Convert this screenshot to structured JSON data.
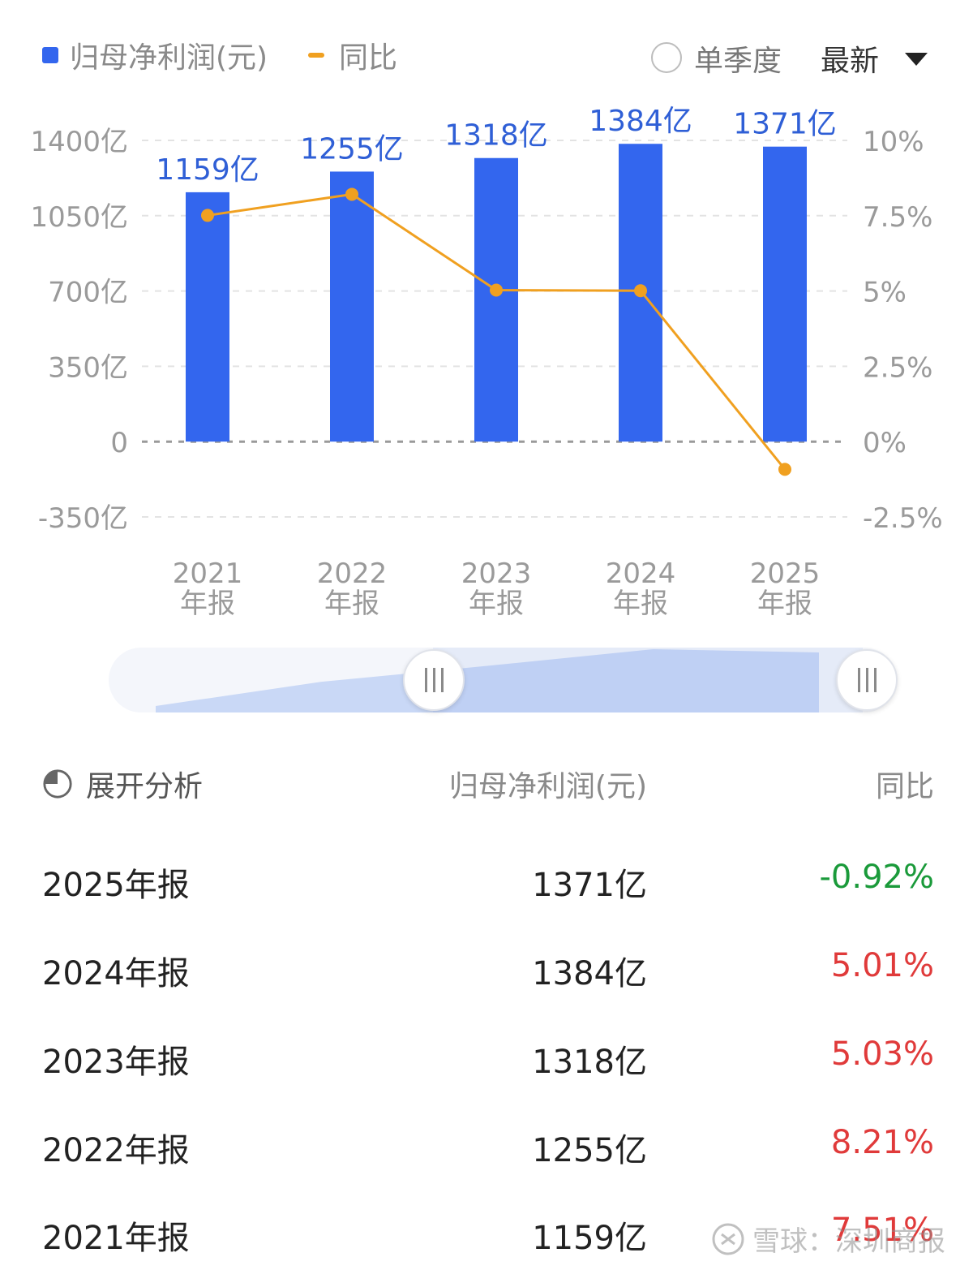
{
  "legend": {
    "bar_label": "归母净利润(元)",
    "line_label": "同比",
    "bar_color": "#3366ee",
    "line_color": "#f0a020"
  },
  "controls": {
    "quarterly_label": "单季度",
    "quarterly_checked": false,
    "period_select": "最新"
  },
  "chart_data": {
    "type": "bar",
    "categories": [
      "2021\n年报",
      "2022\n年报",
      "2023\n年报",
      "2024\n年报",
      "2025\n年报"
    ],
    "series": [
      {
        "name": "归母净利润(元)",
        "type": "bar",
        "values": [
          1159,
          1255,
          1318,
          1384,
          1371
        ],
        "labels": [
          "1159亿",
          "1255亿",
          "1318亿",
          "1384亿",
          "1371亿"
        ],
        "color": "#3366ee"
      },
      {
        "name": "同比",
        "type": "line",
        "values": [
          7.51,
          8.21,
          5.03,
          5.01,
          -0.92
        ],
        "color": "#f0a020"
      }
    ],
    "left_axis": {
      "ticks": [
        "1400亿",
        "1050亿",
        "700亿",
        "350亿",
        "0",
        "-350亿"
      ],
      "tick_values": [
        1400,
        1050,
        700,
        350,
        0,
        -350
      ],
      "ylim": [
        -350,
        1400
      ]
    },
    "right_axis": {
      "ticks": [
        "10%",
        "7.5%",
        "5%",
        "2.5%",
        "0%",
        "-2.5%"
      ],
      "tick_values": [
        10,
        7.5,
        5,
        2.5,
        0,
        -2.5
      ],
      "ylim": [
        -2.5,
        10
      ]
    },
    "grid": true
  },
  "table": {
    "expand_label": "展开分析",
    "col_value": "归母净利润(元)",
    "col_yoy": "同比",
    "rows": [
      {
        "period": "2025年报",
        "value": "1371亿",
        "yoy": "-0.92%",
        "yoy_color": "#1a9a3a"
      },
      {
        "period": "2024年报",
        "value": "1384亿",
        "yoy": "5.01%",
        "yoy_color": "#e03a3a"
      },
      {
        "period": "2023年报",
        "value": "1318亿",
        "yoy": "5.03%",
        "yoy_color": "#e03a3a"
      },
      {
        "period": "2022年报",
        "value": "1255亿",
        "yoy": "8.21%",
        "yoy_color": "#e03a3a"
      },
      {
        "period": "2021年报",
        "value": "1159亿",
        "yoy": "7.51%",
        "yoy_color": "#e03a3a"
      }
    ]
  },
  "watermark": {
    "text": "雪球：深圳商报",
    "icon": "snowball-logo-icon"
  }
}
